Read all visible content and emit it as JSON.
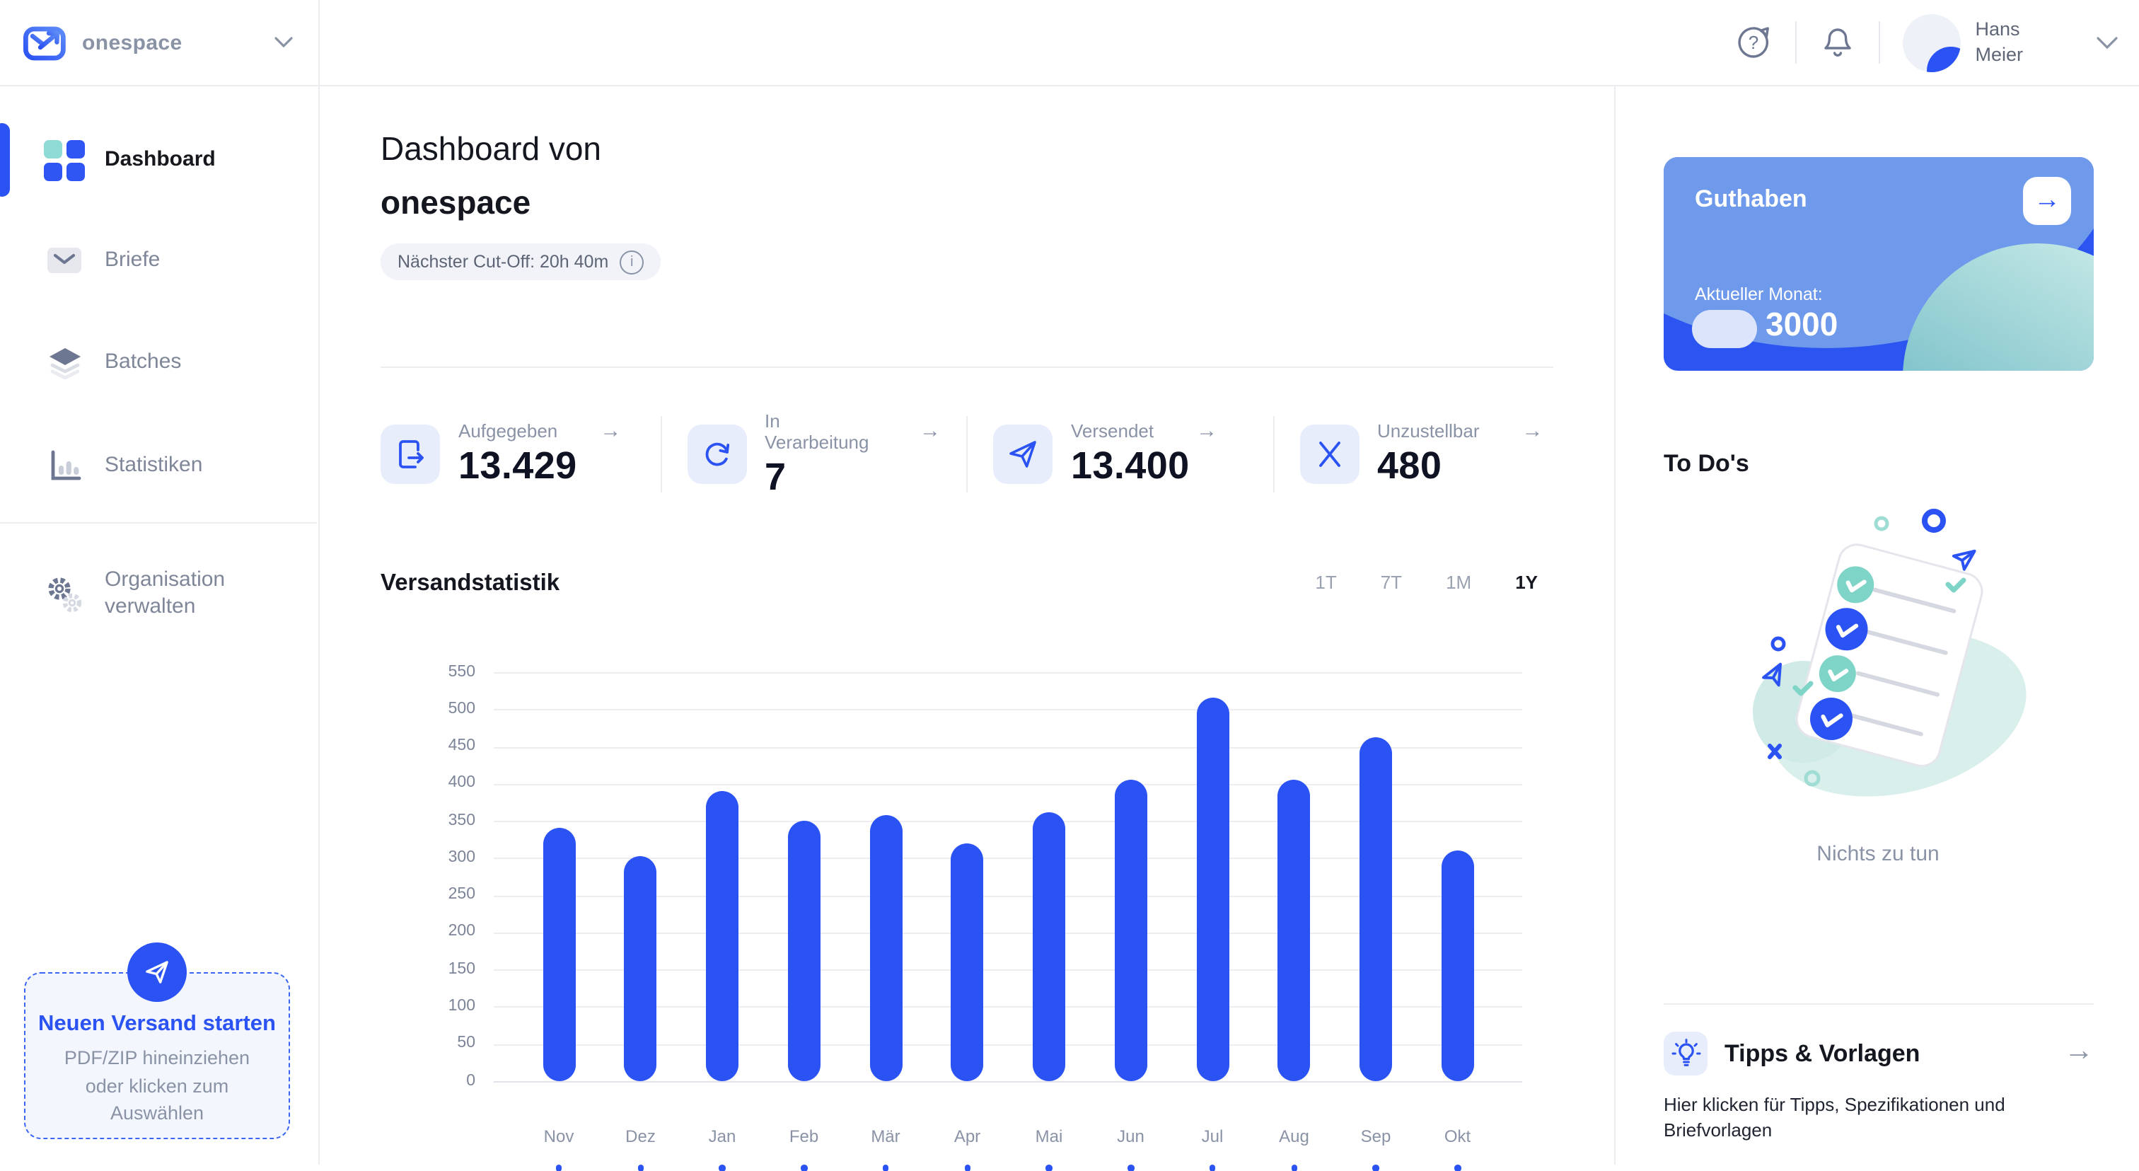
{
  "brand": {
    "name": "onespace"
  },
  "header": {
    "user": {
      "first": "Hans",
      "last": "Meier"
    },
    "help_icon": "question-bubble-icon",
    "notifications_icon": "bell-icon"
  },
  "sidebar": {
    "items": [
      {
        "label": "Dashboard",
        "icon": "dashboard-grid-icon",
        "active": true
      },
      {
        "label": "Briefe",
        "icon": "envelope-icon",
        "active": false
      },
      {
        "label": "Batches",
        "icon": "layers-icon",
        "active": false
      },
      {
        "label": "Statistiken",
        "icon": "bar-chart-icon",
        "active": false
      },
      {
        "label": "Organisation verwalten",
        "icon": "gears-icon",
        "active": false
      }
    ],
    "upload": {
      "title": "Neuen Versand starten",
      "subtitle": "PDF/ZIP hineinziehen oder klicken zum Auswählen",
      "icon": "paper-plane-icon"
    }
  },
  "page": {
    "title_line1": "Dashboard von",
    "title_line2": "onespace",
    "cutoff_label": "Nächster Cut-Off: 20h 40m",
    "info_glyph": "i"
  },
  "stats": [
    {
      "icon": "document-out-icon",
      "label": "Aufgegeben",
      "value": "13.429",
      "arrow": "→"
    },
    {
      "icon": "refresh-icon",
      "label": "In Verarbeitung",
      "value": "7",
      "arrow": "→"
    },
    {
      "icon": "send-icon",
      "label": "Versendet",
      "value": "13.400",
      "arrow": "→"
    },
    {
      "icon": "x-icon",
      "label": "Unzustellbar",
      "value": "480",
      "arrow": "→"
    }
  ],
  "chart_data": {
    "type": "bar",
    "title": "Versandstatistik",
    "range_tabs": [
      "1T",
      "7T",
      "1M",
      "1Y"
    ],
    "active_range": "1Y",
    "categories": [
      "Nov",
      "Dez",
      "Jan",
      "Feb",
      "Mär",
      "Apr",
      "Mai",
      "Jun",
      "Jul",
      "Aug",
      "Sep",
      "Okt"
    ],
    "values": [
      340,
      303,
      390,
      350,
      357,
      320,
      362,
      405,
      515,
      405,
      462,
      310
    ],
    "xlabel": "",
    "ylabel": "",
    "ylim": [
      0,
      550
    ],
    "ytick_step": 50,
    "grid": true,
    "legend": false,
    "bar_color": "#2b52f3",
    "dot_color": "#2b52f3"
  },
  "balance_card": {
    "title": "Guthaben",
    "subtitle": "Aktueller Monat:",
    "amount": "3000",
    "arrow": "→",
    "color": "#2b54f0"
  },
  "todos": {
    "title": "To Do's",
    "empty_text": "Nichts zu tun"
  },
  "tips": {
    "title": "Tipps & Vorlagen",
    "subtitle": "Hier klicken für Tipps, Spezifikationen und Briefvorlagen",
    "arrow": "→",
    "icon": "lightbulb-icon"
  }
}
